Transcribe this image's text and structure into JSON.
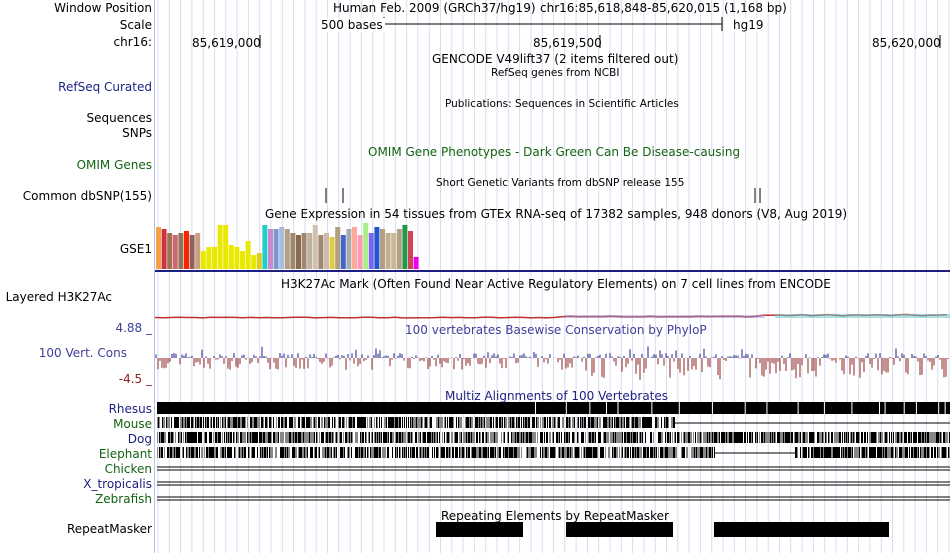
{
  "labels": {
    "window_position": "Window Position",
    "scale": "Scale",
    "chrom": "chr16:",
    "refseq": "RefSeq Curated",
    "sequences": "Sequences",
    "snps": "SNPs",
    "omim": "OMIM Genes",
    "dbsnp": "Common dbSNP(155)",
    "gse1": "GSE1",
    "h3k27ac": "Layered H3K27Ac",
    "cons_max": "4.88 _",
    "cons": "100 Vert. Cons",
    "cons_min": "-4.5 _",
    "repeatmasker": "RepeatMasker"
  },
  "species": [
    {
      "name": "Rhesus",
      "color": "#1d1f80"
    },
    {
      "name": "Mouse",
      "color": "#126312"
    },
    {
      "name": "Dog",
      "color": "#1d1f80"
    },
    {
      "name": "Elephant",
      "color": "#126312"
    },
    {
      "name": "Chicken",
      "color": "#126312"
    },
    {
      "name": "X_tropicalis",
      "color": "#1d1f80"
    },
    {
      "name": "Zebrafish",
      "color": "#126312"
    }
  ],
  "header": {
    "assembly": "Human Feb. 2009 (GRCh37/hg19)",
    "position": "chr16:85,618,848-85,620,015 (1,168 bp)",
    "scale_text": "500 bases",
    "scale_db": "hg19",
    "ticks": [
      "85,619,000",
      "85,619,500",
      "85,620,000"
    ]
  },
  "titles": {
    "gencode": "GENCODE V49lift37 (2 items filtered out)",
    "refseq": "RefSeq genes from NCBI",
    "publications": "Publications: Sequences in Scientific Articles",
    "omim": "OMIM Gene Phenotypes - Dark Green Can Be Disease-causing",
    "dbsnp": "Short Genetic Variants from dbSNP release 155",
    "gtex": "Gene Expression in 54 tissues from GTEx RNA-seq of 17382 samples, 948 donors (V8, Aug 2019)",
    "h3k27ac": "H3K27Ac Mark (Often Found Near Active Regulatory Elements) on 7 cell lines from ENCODE",
    "phylop": "100 vertebrates Basewise Conservation by PhyloP",
    "multiz": "Multiz Alignments of 100 Vertebrates",
    "repeatmasker": "Repeating Elements by RepeatMasker"
  },
  "gtex_colors": [
    "#f4a242",
    "#cc3344",
    "#a07050",
    "#cc6677",
    "#8e7356",
    "#ff2200",
    "#906060",
    "#c8a080",
    "#e8e800",
    "#e8e800",
    "#e8e800",
    "#e8e800",
    "#e8e800",
    "#e8e800",
    "#e8e800",
    "#e8e800",
    "#e8e800",
    "#e8e800",
    "#ddcc22",
    "#22cccc",
    "#cc88cc",
    "#7799cc",
    "#aabbdd",
    "#b29f86",
    "#a08870",
    "#886a50",
    "#a08870",
    "#c0b0a0",
    "#d0c0b0",
    "#a08870",
    "#ccbbaa",
    "#ddcc44",
    "#b0a080",
    "#4466cc",
    "#aaaaaa",
    "#ffaa99",
    "#ff99bb",
    "#aaee88",
    "#7766ee",
    "#2255cc",
    "#b29f86",
    "#c0b090",
    "#c8b898",
    "#b29f86",
    "#229944",
    "#cc4455",
    "#ee00ee"
  ],
  "gtex_values": [
    42,
    40,
    36,
    34,
    36,
    38,
    34,
    36,
    18,
    22,
    22,
    44,
    44,
    24,
    22,
    18,
    28,
    14,
    16,
    44,
    40,
    40,
    42,
    40,
    36,
    34,
    36,
    36,
    44,
    34,
    36,
    32,
    42,
    34,
    40,
    42,
    34,
    46,
    36,
    42,
    40,
    36,
    36,
    40,
    44,
    38,
    12
  ],
  "gtex_unit": "relative expression (max 46)",
  "phylop_range": [
    -4.5,
    4.88
  ]
}
